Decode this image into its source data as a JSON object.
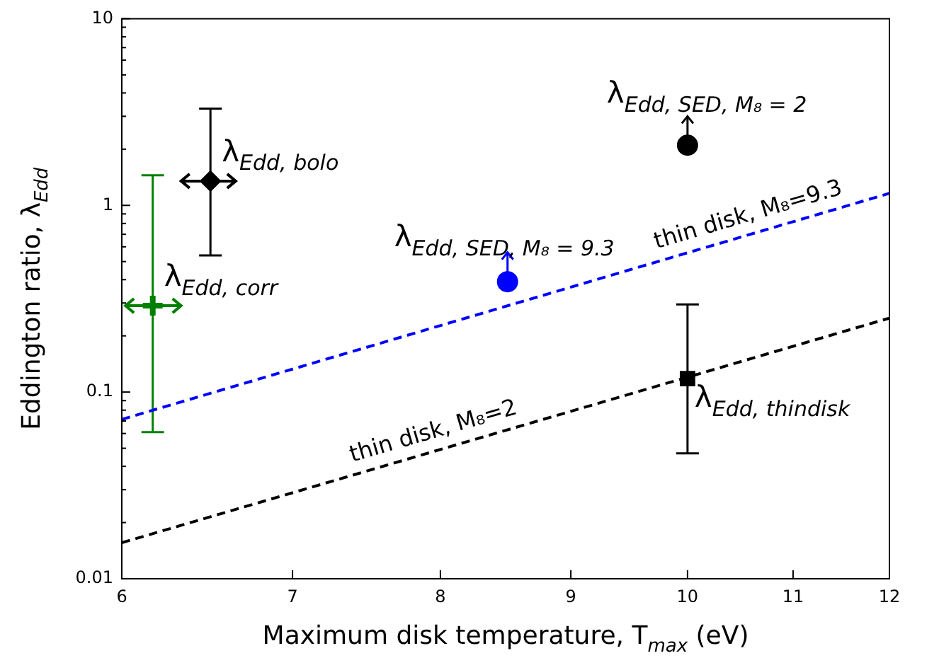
{
  "chart_data": {
    "type": "scatter",
    "xlabel": "Maximum disk temperature, T$_{max}$ (eV)",
    "ylabel": "Eddington ratio, λ$_{Edd}$",
    "log": "xy",
    "xlim": [
      6,
      12
    ],
    "xticks": [
      6,
      7,
      8,
      9,
      10,
      11,
      12
    ],
    "ylim": [
      0.01,
      10
    ],
    "yticks": [
      0.01,
      {
        "value": 0.02,
        "label": null
      },
      {
        "value": 0.03,
        "label": null
      },
      {
        "value": 0.04,
        "label": null
      },
      {
        "value": 0.05,
        "label": null
      },
      {
        "value": 0.06,
        "label": null
      },
      {
        "value": 0.07,
        "label": null
      },
      {
        "value": 0.08,
        "label": null
      },
      {
        "value": 0.09,
        "label": null
      },
      0.1,
      {
        "value": 0.2,
        "label": null
      },
      {
        "value": 0.3,
        "label": null
      },
      {
        "value": 0.4,
        "label": null
      },
      {
        "value": 0.5,
        "label": null
      },
      {
        "value": 0.6,
        "label": null
      },
      {
        "value": 0.7,
        "label": null
      },
      {
        "value": 0.8,
        "label": null
      },
      {
        "value": 0.9,
        "label": null
      },
      1,
      {
        "value": 2,
        "label": null
      },
      {
        "value": 3,
        "label": null
      },
      {
        "value": 4,
        "label": null
      },
      {
        "value": 5,
        "label": null
      },
      {
        "value": 6,
        "label": null
      },
      {
        "value": 7,
        "label": null
      },
      {
        "value": 8,
        "label": null
      },
      {
        "value": 9,
        "label": null
      },
      10
    ],
    "legend": false,
    "grid": false,
    "series": [
      {
        "name": "thin disk, M₈=9.3",
        "type": "line",
        "color": "#0000ff",
        "x": [
          6,
          12
        ],
        "values": [
          0.0714,
          1.16
        ],
        "line_style": "dashed",
        "marker": "none"
      },
      {
        "name": "thin disk, M₈=2",
        "type": "line",
        "color": "#000000",
        "x": [
          6,
          12
        ],
        "values": [
          0.0156,
          0.249
        ],
        "line_style": "dashed",
        "marker": "none"
      },
      {
        "name": "λ$_{Edd, bolo}$",
        "color": "#000000",
        "x": [
          6.5
        ],
        "values": [
          1.35
        ],
        "errors": [
          [
            0.54,
            3.3
          ]
        ],
        "xerrors": [
          [
            6.33,
            6.65
          ]
        ],
        "marker": "diamond"
      },
      {
        "name": "λ$_{Edd, corr}$",
        "color": "#008000",
        "x": [
          6.17
        ],
        "values": [
          0.29
        ],
        "errors": [
          [
            0.061,
            1.45
          ]
        ],
        "xerrors": [
          [
            6.02,
            6.33
          ]
        ],
        "marker": "cross"
      },
      {
        "name": "λ$_{Edd, SED, M₈ = 9.3}$",
        "color": "#0000ff",
        "x": [
          8.5
        ],
        "values": [
          0.39
        ],
        "errors": [
          [
            0.39,
            0.56
          ]
        ],
        "marker": "circle"
      },
      {
        "name": "λ$_{Edd, SED, M₈ = 2}$",
        "color": "#000000",
        "x": [
          10
        ],
        "values": [
          2.1
        ],
        "errors": [
          [
            2.1,
            3.0
          ]
        ],
        "marker": "circle"
      },
      {
        "name": "λ$_{Edd, thindisk}$",
        "color": "#000000",
        "x": [
          10
        ],
        "values": [
          0.118
        ],
        "errors": [
          [
            0.047,
            0.295
          ]
        ],
        "marker": "square"
      }
    ]
  }
}
